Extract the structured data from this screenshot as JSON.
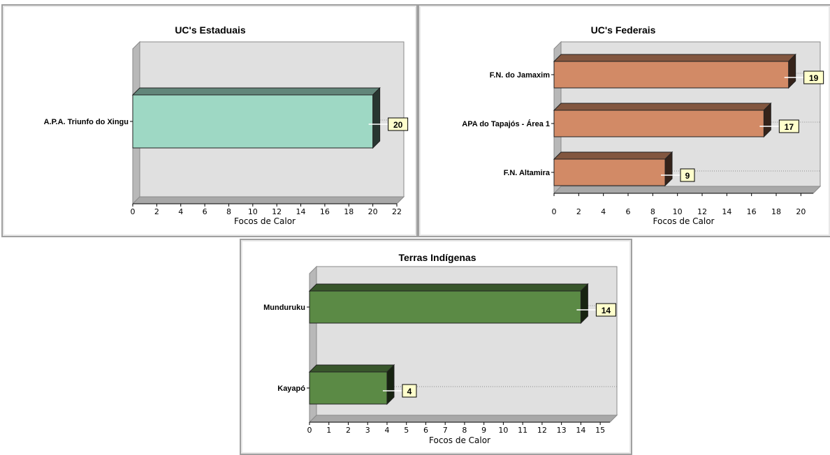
{
  "chart_data": [
    {
      "type": "bar",
      "orientation": "horizontal",
      "title": "UC's Estaduais",
      "xlabel": "Focos de Calor",
      "categories": [
        "A.P.A. Triunfo do Xingu"
      ],
      "values": [
        20
      ],
      "xlim": [
        0,
        22
      ],
      "ticks": [
        "0",
        "2",
        "4",
        "6",
        "8",
        "10",
        "12",
        "14",
        "16",
        "18",
        "20",
        "22"
      ],
      "bar_color": "#9ed8c4",
      "data_labels": [
        "20"
      ]
    },
    {
      "type": "bar",
      "orientation": "horizontal",
      "title": "UC's Federais",
      "xlabel": "Focos de Calor",
      "categories": [
        "F.N. do Jamaxim",
        "APA do Tapajós - Área 1",
        "F.N. Altamira"
      ],
      "values": [
        19,
        17,
        9
      ],
      "xlim": [
        0,
        21
      ],
      "ticks": [
        "0",
        "2",
        "4",
        "6",
        "8",
        "10",
        "12",
        "14",
        "16",
        "18",
        "20"
      ],
      "bar_color": "#d28a66",
      "data_labels": [
        "19",
        "17",
        "9"
      ]
    },
    {
      "type": "bar",
      "orientation": "horizontal",
      "title": "Terras Indígenas",
      "xlabel": "Focos de Calor",
      "categories": [
        "Munduruku",
        "Kayapó"
      ],
      "values": [
        14,
        4
      ],
      "xlim": [
        0,
        15.5
      ],
      "ticks": [
        "0",
        "1",
        "2",
        "3",
        "4",
        "5",
        "6",
        "7",
        "8",
        "9",
        "10",
        "11",
        "12",
        "13",
        "14",
        "15"
      ],
      "bar_color": "#5b8a45",
      "data_labels": [
        "14",
        "4"
      ]
    }
  ]
}
